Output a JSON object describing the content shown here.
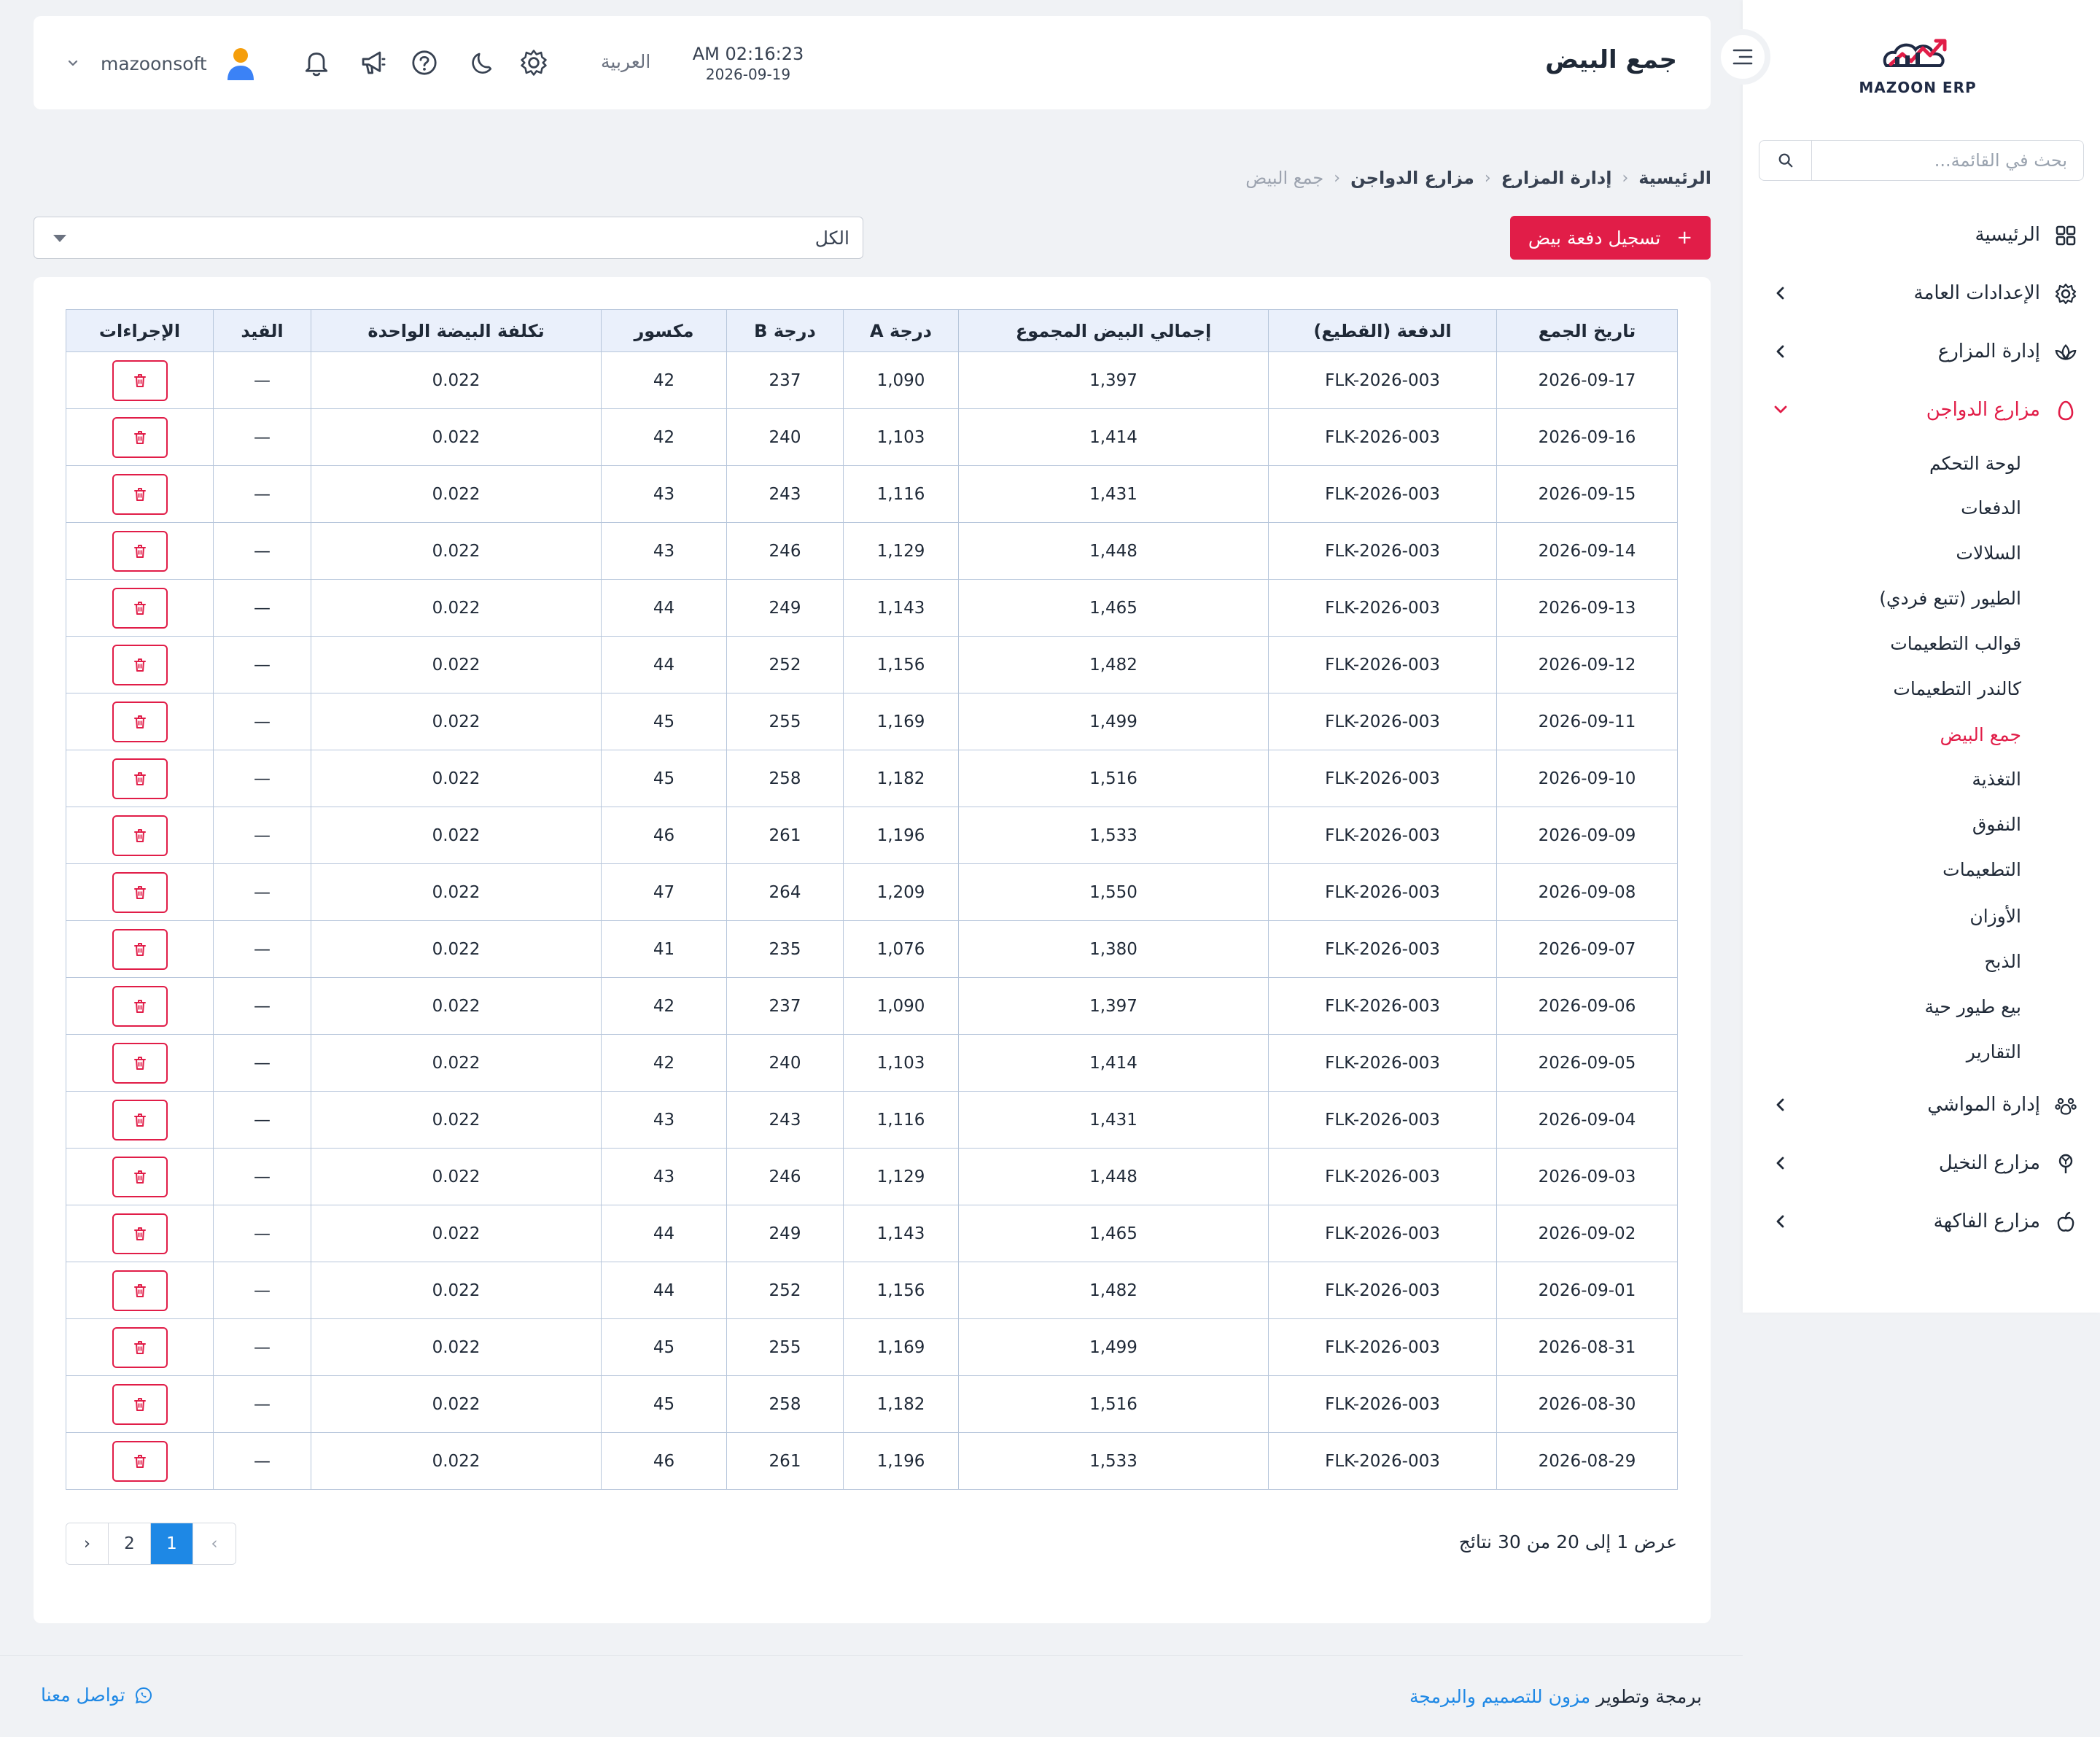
{
  "brand": {
    "logo_text": "MAZOON ERP",
    "logo_tag": "ERP"
  },
  "sidebar": {
    "search_placeholder": "بحث في القائمة...",
    "items": [
      {
        "label": "الرئيسية",
        "icon": "grid-icon"
      },
      {
        "label": "الإعدادات العامة",
        "icon": "gear-icon",
        "has_children": true
      },
      {
        "label": "إدارة المزارع",
        "icon": "plant-icon",
        "has_children": true
      },
      {
        "label": "مزارع الدواجن",
        "icon": "egg-icon",
        "has_children": true,
        "expanded": true,
        "active": true
      },
      {
        "label": "إدارة المواشي",
        "icon": "paw-icon",
        "has_children": true
      },
      {
        "label": "مزارع النخيل",
        "icon": "palm-icon",
        "has_children": true
      },
      {
        "label": "مزارع الفاكهة",
        "icon": "apple-icon",
        "has_children": true
      }
    ],
    "sub_items": [
      "لوحة التحكم",
      "الدفعات",
      "السلالات",
      "الطيور (تتبع فردي)",
      "قوالب التطعيمات",
      "كالندر التطعيمات",
      "جمع البيض",
      "التغذية",
      "النفوق",
      "التطعيمات",
      "الأوزان",
      "الذبح",
      "بيع طيور حية",
      "التقارير"
    ],
    "active_sub": "جمع البيض"
  },
  "header": {
    "title": "جمع البيض",
    "time": "AM 02:16:23",
    "date": "2026-09-19",
    "language": "العربية",
    "user_name": "mazoonsoft"
  },
  "breadcrumb": [
    "الرئيسية",
    "إدارة المزارع",
    "مزارع الدواجن",
    "جمع البيض"
  ],
  "toolbar": {
    "add_label": "تسجيل دفعة بيض",
    "filter_value": "الكل"
  },
  "table": {
    "headers": [
      "تاريخ الجمع",
      "الدفعة (القطيع)",
      "إجمالي البيض المجموع",
      "درجة A",
      "درجة B",
      "مكسور",
      "تكلفة البيضة الواحدة",
      "القيد",
      "الإجراءات"
    ],
    "rows": [
      [
        "2026-09-17",
        "FLK-2026-003",
        "1,397",
        "1,090",
        "237",
        "42",
        "0.022",
        "—"
      ],
      [
        "2026-09-16",
        "FLK-2026-003",
        "1,414",
        "1,103",
        "240",
        "42",
        "0.022",
        "—"
      ],
      [
        "2026-09-15",
        "FLK-2026-003",
        "1,431",
        "1,116",
        "243",
        "43",
        "0.022",
        "—"
      ],
      [
        "2026-09-14",
        "FLK-2026-003",
        "1,448",
        "1,129",
        "246",
        "43",
        "0.022",
        "—"
      ],
      [
        "2026-09-13",
        "FLK-2026-003",
        "1,465",
        "1,143",
        "249",
        "44",
        "0.022",
        "—"
      ],
      [
        "2026-09-12",
        "FLK-2026-003",
        "1,482",
        "1,156",
        "252",
        "44",
        "0.022",
        "—"
      ],
      [
        "2026-09-11",
        "FLK-2026-003",
        "1,499",
        "1,169",
        "255",
        "45",
        "0.022",
        "—"
      ],
      [
        "2026-09-10",
        "FLK-2026-003",
        "1,516",
        "1,182",
        "258",
        "45",
        "0.022",
        "—"
      ],
      [
        "2026-09-09",
        "FLK-2026-003",
        "1,533",
        "1,196",
        "261",
        "46",
        "0.022",
        "—"
      ],
      [
        "2026-09-08",
        "FLK-2026-003",
        "1,550",
        "1,209",
        "264",
        "47",
        "0.022",
        "—"
      ],
      [
        "2026-09-07",
        "FLK-2026-003",
        "1,380",
        "1,076",
        "235",
        "41",
        "0.022",
        "—"
      ],
      [
        "2026-09-06",
        "FLK-2026-003",
        "1,397",
        "1,090",
        "237",
        "42",
        "0.022",
        "—"
      ],
      [
        "2026-09-05",
        "FLK-2026-003",
        "1,414",
        "1,103",
        "240",
        "42",
        "0.022",
        "—"
      ],
      [
        "2026-09-04",
        "FLK-2026-003",
        "1,431",
        "1,116",
        "243",
        "43",
        "0.022",
        "—"
      ],
      [
        "2026-09-03",
        "FLK-2026-003",
        "1,448",
        "1,129",
        "246",
        "43",
        "0.022",
        "—"
      ],
      [
        "2026-09-02",
        "FLK-2026-003",
        "1,465",
        "1,143",
        "249",
        "44",
        "0.022",
        "—"
      ],
      [
        "2026-09-01",
        "FLK-2026-003",
        "1,482",
        "1,156",
        "252",
        "44",
        "0.022",
        "—"
      ],
      [
        "2026-08-31",
        "FLK-2026-003",
        "1,499",
        "1,169",
        "255",
        "45",
        "0.022",
        "—"
      ],
      [
        "2026-08-30",
        "FLK-2026-003",
        "1,516",
        "1,182",
        "258",
        "45",
        "0.022",
        "—"
      ],
      [
        "2026-08-29",
        "FLK-2026-003",
        "1,533",
        "1,196",
        "261",
        "46",
        "0.022",
        "—"
      ]
    ]
  },
  "pagination": {
    "summary": "عرض 1 إلى 20 من 30 نتائج",
    "prev": "‹",
    "next": "›",
    "pages": [
      "1",
      "2"
    ],
    "current": "1"
  },
  "footer": {
    "credit_prefix": "برمجة وتطوير",
    "credit_link": "مزون للتصميم والبرمجة",
    "contact": "تواصل معنا"
  },
  "colors": {
    "accent": "#e11d48",
    "link": "#1e88e5",
    "table_header_bg": "#eaf0fb",
    "table_border": "#b7c6db"
  }
}
